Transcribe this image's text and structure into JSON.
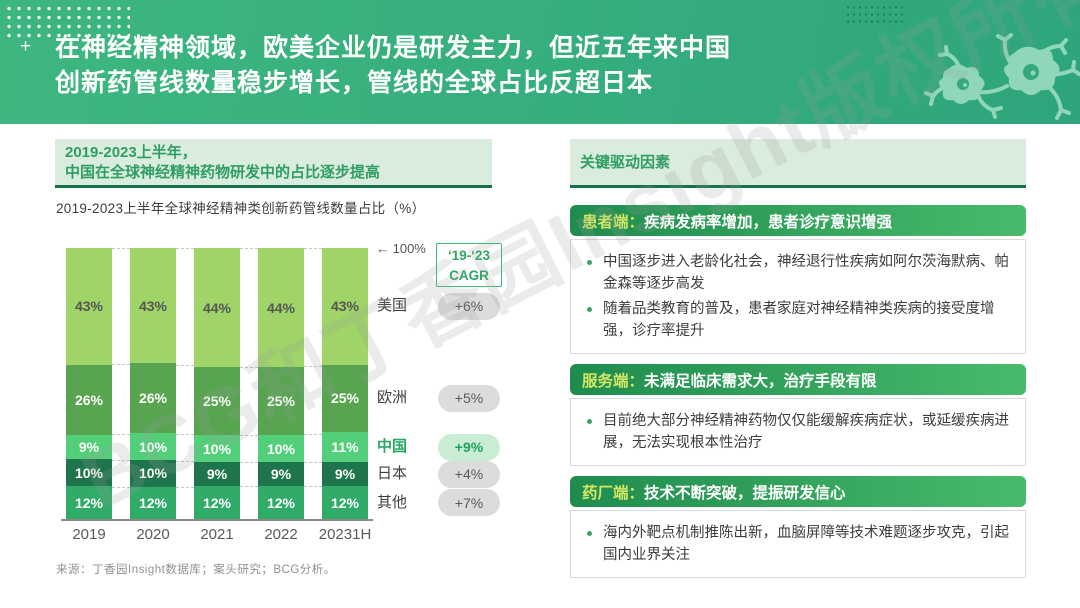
{
  "header": {
    "plus_mark": "+",
    "title_line1": "在神经精神领域，欧美企业仍是研发主力，但近五年来中国",
    "title_line2": "创新药管线数量稳步增长，管线的全球占比反超日本"
  },
  "watermark": "BCG和丁香园Insight版权所有",
  "left": {
    "headline_line1": "2019-2023上半年，",
    "headline_line2": "中国在全球神经精神药物研发中的占比逐步提高"
  },
  "chart_data": {
    "type": "stacked-bar",
    "title": "2019-2023上半年全球神经精神类创新药管线数量占比（%）",
    "categories": [
      "2019",
      "2020",
      "2021",
      "2022",
      "20231H"
    ],
    "series": [
      {
        "name": "美国",
        "values": [
          43,
          43,
          44,
          44,
          43
        ],
        "color": "#9fd468",
        "text_color": "#555555",
        "cagr": "+6%"
      },
      {
        "name": "欧洲",
        "values": [
          26,
          26,
          25,
          25,
          25
        ],
        "color": "#58a450",
        "text_color": "#ffffff",
        "cagr": "+5%"
      },
      {
        "name": "中国",
        "values": [
          9,
          10,
          10,
          10,
          11
        ],
        "color": "#53cf79",
        "text_color": "#ffffff",
        "cagr": "+9%",
        "highlight": true
      },
      {
        "name": "日本",
        "values": [
          10,
          10,
          9,
          9,
          9
        ],
        "color": "#1e754b",
        "text_color": "#ffffff",
        "cagr": "+4%"
      },
      {
        "name": "其他",
        "values": [
          12,
          12,
          12,
          12,
          12
        ],
        "color": "#31ab68",
        "text_color": "#ffffff",
        "cagr": "+7%"
      }
    ],
    "ylim": [
      0,
      100
    ],
    "top_annotation": "← 100%",
    "cagr_header_line1": "‘19-‘23",
    "cagr_header_line2": "CAGR",
    "legend_position": "right"
  },
  "right": {
    "headline": "关键驱动因素",
    "sections": [
      {
        "tag": "患者端：",
        "title": "疾病发病率增加，患者诊疗意识增强",
        "bullets": [
          "中国逐步进入老龄化社会，神经退行性疾病如阿尔茨海默病、帕金森等逐步高发",
          "随着品类教育的普及，患者家庭对神经精神类疾病的接受度增强，诊疗率提升"
        ]
      },
      {
        "tag": "服务端：",
        "title": "未满足临床需求大，治疗手段有限",
        "bullets": [
          "目前绝大部分神经精神药物仅仅能缓解疾病症状，或延缓疾病进展，无法实现根本性治疗"
        ]
      },
      {
        "tag": "药厂端：",
        "title": "技术不断突破，提振研发信心",
        "bullets": [
          "海内外靶点机制推陈出新，血脑屏障等技术难题逐步攻克，引起国内业界关注"
        ]
      }
    ]
  },
  "footer": {
    "source": "来源：丁香园Insight数据库；案头研究；BCG分析。"
  },
  "colors": {
    "header_left": "#3db77e",
    "header_right": "#2ea57c",
    "headline_bg": "#d9ecdd",
    "headline_text": "#2f9e63",
    "headline_underline": "#15714a",
    "banner_gradient_left": "#1f8c4e",
    "banner_gradient_right": "#49ba6c",
    "banner_tag_text": "#d3e764",
    "pill_bg": "#dcdcdc",
    "pill_text": "#595959",
    "pill_highlight_bg": "#c9ecd4",
    "pill_highlight_text": "#1fa05f"
  }
}
